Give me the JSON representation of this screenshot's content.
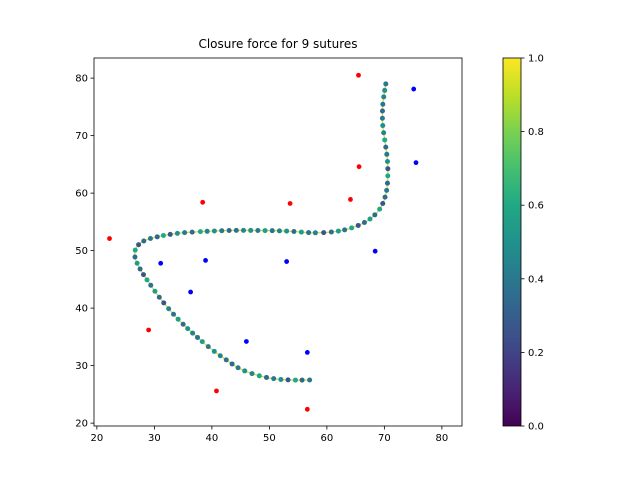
{
  "chart_data": {
    "type": "scatter",
    "title": "Closure force for 9 sutures",
    "xlabel": "",
    "ylabel": "",
    "xlim": [
      19.5,
      83.5
    ],
    "ylim": [
      19.5,
      83.5
    ],
    "x_ticks": [
      "20",
      "30",
      "40",
      "50",
      "60",
      "70",
      "80"
    ],
    "y_ticks": [
      "20",
      "30",
      "40",
      "50",
      "60",
      "70",
      "80"
    ],
    "grid": false,
    "colorbar": {
      "colormap": "viridis",
      "range": [
        0.0,
        1.0
      ],
      "ticks": [
        "0.0",
        "0.2",
        "0.4",
        "0.6",
        "0.8",
        "1.0"
      ]
    },
    "curve_control_points": [
      [
        57,
        27.5
      ],
      [
        54,
        27.5
      ],
      [
        51,
        27.7
      ],
      [
        48,
        28.3
      ],
      [
        45,
        29.4
      ],
      [
        42.5,
        31.0
      ],
      [
        40,
        32.8
      ],
      [
        37.5,
        34.9
      ],
      [
        35,
        37.2
      ],
      [
        33,
        39.3
      ],
      [
        31,
        41.7
      ],
      [
        29.5,
        43.8
      ],
      [
        28,
        46.0
      ],
      [
        27,
        47.8
      ],
      [
        26.6,
        49.1
      ],
      [
        26.8,
        50.4
      ],
      [
        28,
        51.6
      ],
      [
        30.5,
        52.4
      ],
      [
        34,
        53.0
      ],
      [
        38,
        53.3
      ],
      [
        43,
        53.5
      ],
      [
        48,
        53.5
      ],
      [
        53,
        53.4
      ],
      [
        58,
        53.1
      ],
      [
        62,
        53.4
      ],
      [
        65,
        54.2
      ],
      [
        67.5,
        55.5
      ],
      [
        69.3,
        57.4
      ],
      [
        70.3,
        60
      ],
      [
        70.6,
        63
      ],
      [
        70.5,
        66
      ],
      [
        70.1,
        69
      ],
      [
        69.7,
        72
      ],
      [
        69.7,
        75
      ],
      [
        70,
        77.5
      ],
      [
        70.3,
        79.3
      ]
    ],
    "series": [
      {
        "color": "#ff0000",
        "points": [
          [
            65.5,
            80.5
          ],
          [
            65.6,
            64.6
          ],
          [
            64.1,
            58.9
          ],
          [
            53.6,
            58.2
          ],
          [
            38.4,
            58.4
          ],
          [
            22.2,
            52.1
          ],
          [
            29.0,
            36.2
          ],
          [
            40.8,
            25.6
          ],
          [
            56.6,
            22.4
          ]
        ]
      },
      {
        "color": "#0000ff",
        "points": [
          [
            75.1,
            78.1
          ],
          [
            75.5,
            65.3
          ],
          [
            68.4,
            49.9
          ],
          [
            53.0,
            48.1
          ],
          [
            38.9,
            48.3
          ],
          [
            31.1,
            47.8
          ],
          [
            36.3,
            42.8
          ],
          [
            46.0,
            34.2
          ],
          [
            56.6,
            32.3
          ]
        ]
      }
    ]
  }
}
